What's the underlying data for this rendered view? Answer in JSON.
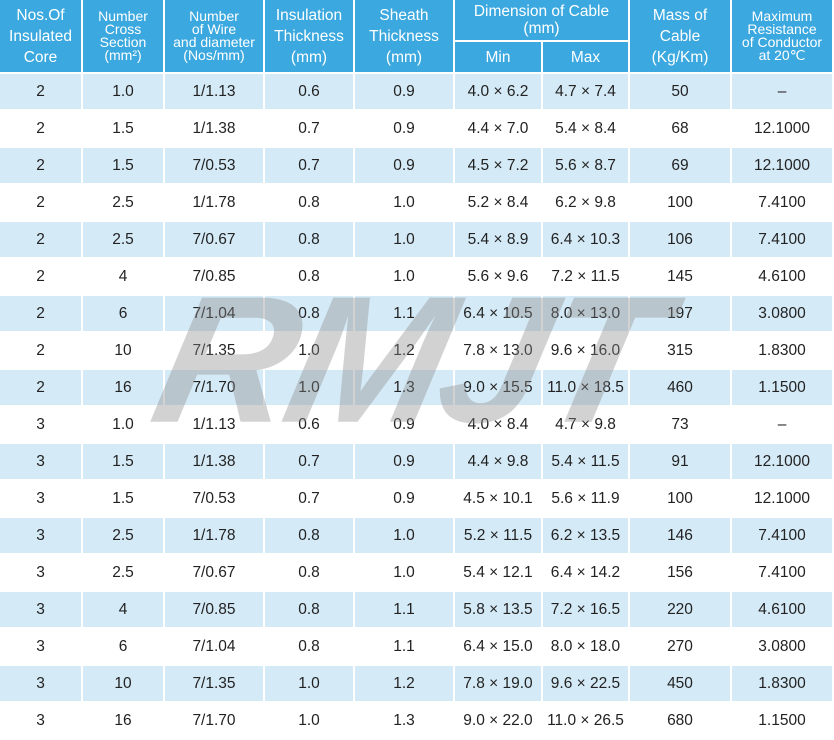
{
  "header": {
    "row1": [
      [
        "Nos.Of",
        "Insulated",
        "Core"
      ],
      [
        "Number",
        "Cross",
        "Section",
        "(mm²)"
      ],
      [
        "Number",
        "of Wire",
        "and diameter",
        "(Nos/mm)"
      ],
      [
        "Insulation",
        "Thickness",
        "(mm)"
      ],
      [
        "Sheath",
        "Thickness",
        "(mm)"
      ],
      [
        "Dimension of Cable",
        "(mm)"
      ],
      [
        "Mass of",
        "Cable",
        "(Kg/Km)"
      ],
      [
        "Maximum",
        "Resistance",
        "of Conductor",
        "at 20℃"
      ]
    ],
    "row2": [
      "Min",
      "Max"
    ]
  },
  "watermark": "RMJT",
  "table": {
    "rows": [
      [
        "2",
        "1.0",
        "1/1.13",
        "0.6",
        "0.9",
        "4.0 × 6.2",
        "4.7 × 7.4",
        "50",
        "–"
      ],
      [
        "2",
        "1.5",
        "1/1.38",
        "0.7",
        "0.9",
        "4.4 × 7.0",
        "5.4 × 8.4",
        "68",
        "12.1000"
      ],
      [
        "2",
        "1.5",
        "7/0.53",
        "0.7",
        "0.9",
        "4.5 × 7.2",
        "5.6 × 8.7",
        "69",
        "12.1000"
      ],
      [
        "2",
        "2.5",
        "1/1.78",
        "0.8",
        "1.0",
        "5.2 × 8.4",
        "6.2 × 9.8",
        "100",
        "7.4100"
      ],
      [
        "2",
        "2.5",
        "7/0.67",
        "0.8",
        "1.0",
        "5.4 × 8.9",
        "6.4 × 10.3",
        "106",
        "7.4100"
      ],
      [
        "2",
        "4",
        "7/0.85",
        "0.8",
        "1.0",
        "5.6 × 9.6",
        "7.2 × 11.5",
        "145",
        "4.6100"
      ],
      [
        "2",
        "6",
        "7/1.04",
        "0.8",
        "1.1",
        "6.4 × 10.5",
        "8.0 × 13.0",
        "197",
        "3.0800"
      ],
      [
        "2",
        "10",
        "7/1.35",
        "1.0",
        "1.2",
        "7.8 × 13.0",
        "9.6 × 16.0",
        "315",
        "1.8300"
      ],
      [
        "2",
        "16",
        "7/1.70",
        "1.0",
        "1.3",
        "9.0 × 15.5",
        "11.0 × 18.5",
        "460",
        "1.1500"
      ],
      [
        "3",
        "1.0",
        "1/1.13",
        "0.6",
        "0.9",
        "4.0 × 8.4",
        "4.7 × 9.8",
        "73",
        "–"
      ],
      [
        "3",
        "1.5",
        "1/1.38",
        "0.7",
        "0.9",
        "4.4 × 9.8",
        "5.4 × 11.5",
        "91",
        "12.1000"
      ],
      [
        "3",
        "1.5",
        "7/0.53",
        "0.7",
        "0.9",
        "4.5 × 10.1",
        "5.6 × 11.9",
        "100",
        "12.1000"
      ],
      [
        "3",
        "2.5",
        "1/1.78",
        "0.8",
        "1.0",
        "5.2 × 11.5",
        "6.2 × 13.5",
        "146",
        "7.4100"
      ],
      [
        "3",
        "2.5",
        "7/0.67",
        "0.8",
        "1.0",
        "5.4 × 12.1",
        "6.4 × 14.2",
        "156",
        "7.4100"
      ],
      [
        "3",
        "4",
        "7/0.85",
        "0.8",
        "1.1",
        "5.8 × 13.5",
        "7.2 × 16.5",
        "220",
        "4.6100"
      ],
      [
        "3",
        "6",
        "7/1.04",
        "0.8",
        "1.1",
        "6.4 × 15.0",
        "8.0 × 18.0",
        "270",
        "3.0800"
      ],
      [
        "3",
        "10",
        "7/1.35",
        "1.0",
        "1.2",
        "7.8 × 19.0",
        "9.6 × 22.5",
        "450",
        "1.8300"
      ],
      [
        "3",
        "16",
        "7/1.70",
        "1.0",
        "1.3",
        "9.0 × 22.0",
        "11.0 × 26.5",
        "680",
        "1.1500"
      ]
    ]
  }
}
